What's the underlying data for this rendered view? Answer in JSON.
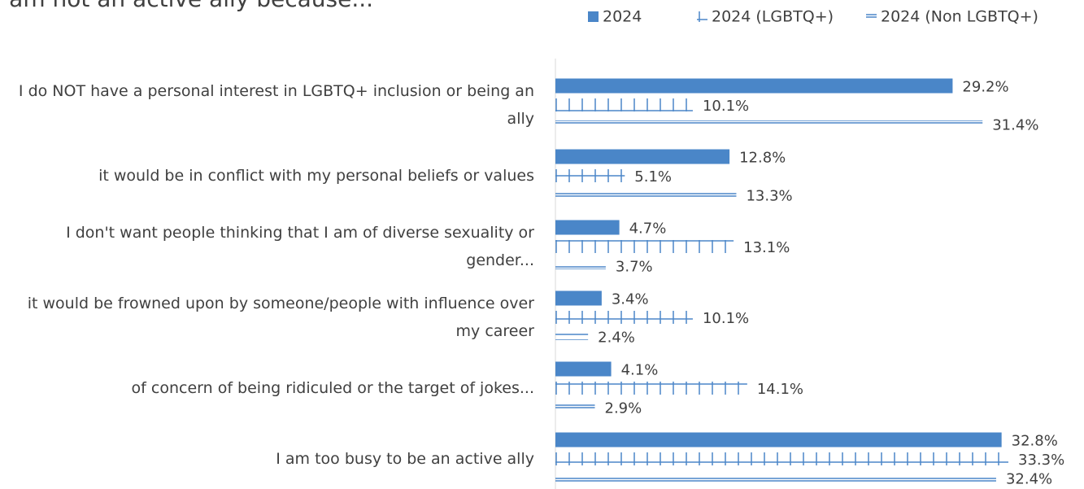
{
  "chart_data": {
    "type": "bar",
    "orientation": "horizontal",
    "title": "I am not an active ally because...",
    "categories": [
      "I do NOT have a personal interest in LGBTQ+ inclusion or being an ally",
      "it would be in conflict with my personal beliefs or values",
      "I don't want people thinking that I am of diverse sexuality or gender...",
      "it would be frowned upon by someone/people with influence over my career",
      "of concern of being ridiculed or the target of jokes...",
      "I am too busy to be an active ally"
    ],
    "series": [
      {
        "name": "2024",
        "color": "#4a86c8",
        "values": [
          29.2,
          12.8,
          4.7,
          3.4,
          4.1,
          32.8
        ],
        "value_labels": [
          "29.2%",
          "12.8%",
          "4.7%",
          "3.4%",
          "4.1%",
          "32.8%"
        ]
      },
      {
        "name": "2024 (LGBTQ+)",
        "color": "#4a86c8",
        "values": [
          10.1,
          5.1,
          13.1,
          10.1,
          14.1,
          33.3
        ],
        "value_labels": [
          "10.1%",
          "5.1%",
          "13.1%",
          "10.1%",
          "14.1%",
          "33.3%"
        ]
      },
      {
        "name": "2024 (Non LGBTQ+)",
        "color": "#4a86c8",
        "values": [
          31.4,
          13.3,
          3.7,
          2.4,
          2.9,
          32.4
        ],
        "value_labels": [
          "31.4%",
          "13.3%",
          "3.7%",
          "2.4%",
          "2.9%",
          "32.4%"
        ]
      }
    ],
    "xlim": [
      0,
      38.5
    ],
    "legend": "top-right"
  }
}
